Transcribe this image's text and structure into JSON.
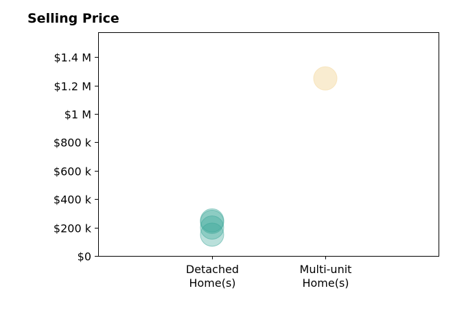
{
  "chart_data": {
    "type": "scatter",
    "title": "Selling Price",
    "xlabel": "",
    "ylabel": "",
    "categories": [
      [
        "Detached",
        "Home(s)"
      ],
      [
        "Multi-unit",
        "Home(s)"
      ]
    ],
    "y_ticks": [
      {
        "value": 0,
        "label": "$0"
      },
      {
        "value": 200000,
        "label": "$200 k"
      },
      {
        "value": 400000,
        "label": "$400 k"
      },
      {
        "value": 600000,
        "label": "$600 k"
      },
      {
        "value": 800000,
        "label": "$800 k"
      },
      {
        "value": 1000000,
        "label": "$1 M"
      },
      {
        "value": 1200000,
        "label": "$1.2 M"
      },
      {
        "value": 1400000,
        "label": "$1.4 M"
      }
    ],
    "ylim": [
      0,
      1575000
    ],
    "grid": false,
    "series": [
      {
        "category_index": 0,
        "color": "#3aa597",
        "opacity": 0.35,
        "values": [
          150000,
          200000,
          240000,
          250000
        ]
      },
      {
        "category_index": 1,
        "color": "#f5dfb0",
        "opacity": 0.6,
        "values": [
          1250000
        ]
      }
    ]
  }
}
